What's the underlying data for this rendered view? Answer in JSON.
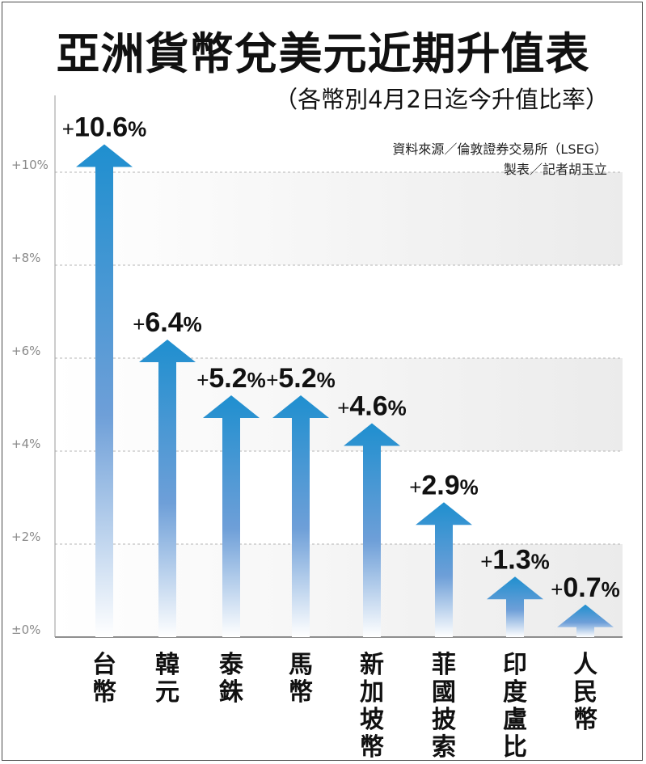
{
  "title": "亞洲貨幣兌美元近期升值表",
  "subtitle": "（各幣別4月2日迄今升值比率）",
  "source": "資料來源／倫敦證券交易所（LSEG）",
  "credit": "製表／記者胡玉立",
  "colors": {
    "arrow_top": "#1f8fcf",
    "arrow_mid": "#6e9fd8",
    "arrow_bottom": "#ffffff",
    "grid": "#b5b5b5",
    "axis_text": "#8a8a8a"
  },
  "chart_data": {
    "type": "bar",
    "categories": [
      "台幣",
      "韓元",
      "泰銖",
      "馬幣",
      "新加坡幣",
      "菲國披索",
      "印度盧比",
      "人民幣"
    ],
    "values": [
      10.6,
      6.4,
      5.2,
      5.2,
      4.6,
      2.9,
      1.3,
      0.7
    ],
    "data_labels": [
      "+10.6%",
      "+6.4%",
      "+5.2%",
      "+5.2%",
      "+4.6%",
      "+2.9%",
      "+1.3%",
      "+0.7%"
    ],
    "yticks": [
      "±0%",
      "+2%",
      "+4%",
      "+6%",
      "+8%",
      "+10%"
    ],
    "ylim": [
      0,
      11.5
    ],
    "grid": true,
    "xlabel": "",
    "ylabel": ""
  }
}
